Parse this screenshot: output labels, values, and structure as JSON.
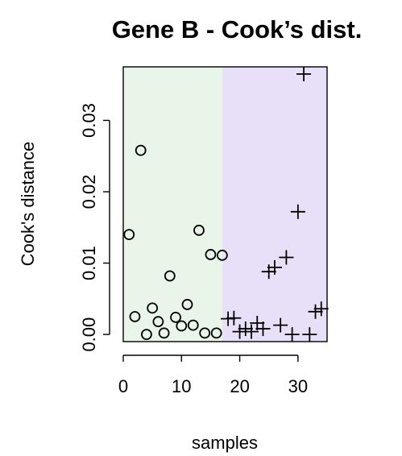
{
  "chart_data": {
    "type": "scatter",
    "title": "Gene B - Cook’s dist.",
    "xlabel": "samples",
    "ylabel": "Cook's distance",
    "xlim": [
      0,
      35
    ],
    "ylim": [
      -0.001,
      0.0375
    ],
    "x_ticks": [
      0,
      10,
      20,
      30
    ],
    "x_tick_labels": [
      "0",
      "10",
      "20",
      "30"
    ],
    "y_ticks": [
      0.0,
      0.01,
      0.02,
      0.03
    ],
    "y_tick_labels": [
      "0.00",
      "0.01",
      "0.02",
      "0.03"
    ],
    "grid": false,
    "legend": "none",
    "regions": [
      {
        "x_range": [
          0,
          17
        ],
        "color": "#e8f5e8"
      },
      {
        "x_range": [
          17,
          35
        ],
        "color": "#e8e0f8"
      }
    ],
    "series": [
      {
        "marker": "circle",
        "color": "#000000",
        "x": [
          1,
          2,
          3,
          4,
          5,
          6,
          7,
          8,
          9,
          10,
          11,
          12,
          13,
          14,
          15,
          16,
          17
        ],
        "y": [
          0.014,
          0.0025,
          0.0258,
          0.0,
          0.0037,
          0.0018,
          0.0002,
          0.0082,
          0.0024,
          0.0012,
          0.0042,
          0.0013,
          0.0146,
          0.0002,
          0.0112,
          0.0002,
          0.0111
        ]
      },
      {
        "marker": "plus",
        "color": "#000000",
        "x": [
          18,
          19,
          20,
          21,
          22,
          23,
          24,
          25,
          26,
          27,
          28,
          29,
          30,
          31,
          32,
          33,
          34
        ],
        "y": [
          0.0022,
          0.0023,
          0.0004,
          0.0008,
          0.0004,
          0.0016,
          0.0008,
          0.0088,
          0.0094,
          0.0013,
          0.0108,
          0.0,
          0.0172,
          0.0365,
          0.0,
          0.0032,
          0.0036
        ]
      }
    ]
  }
}
